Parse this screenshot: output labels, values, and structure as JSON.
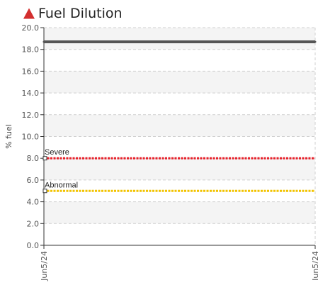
{
  "header": {
    "title": "Fuel Dilution",
    "status_icon": "warning-triangle-icon",
    "status_color": "#d32f2f"
  },
  "chart_data": {
    "type": "line",
    "title": "Fuel Dilution",
    "ylabel": "% fuel",
    "xlabel": "",
    "ylim": [
      0,
      20
    ],
    "yticks": [
      "0.0",
      "2.0",
      "4.0",
      "6.0",
      "8.0",
      "10.0",
      "12.0",
      "14.0",
      "16.0",
      "18.0",
      "20.0"
    ],
    "x": [
      "Jun5/24",
      "Jun5/24"
    ],
    "grid": true,
    "series": [
      {
        "values": [
          18.7,
          18.7
        ],
        "color": "#555555"
      }
    ],
    "thresholds": [
      {
        "name": "Severe",
        "value": 8.0,
        "color": "#e8202a"
      },
      {
        "name": "Abnormal",
        "value": 5.0,
        "color": "#f2c300"
      }
    ]
  }
}
